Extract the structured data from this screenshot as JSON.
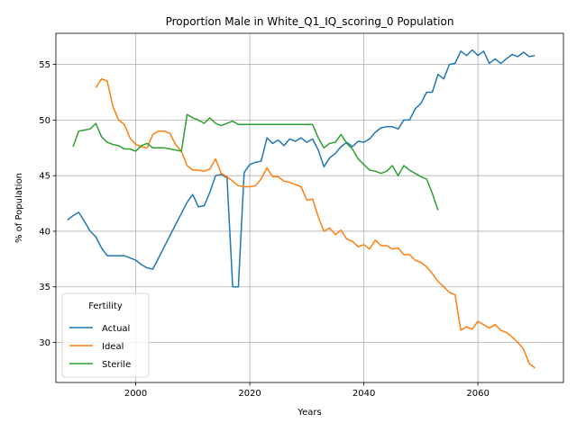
{
  "chart_data": {
    "type": "line",
    "title": "Proportion Male in White_Q1_IQ_scoring_0 Population",
    "xlabel": "Years",
    "ylabel": "% of Population",
    "xlim": [
      1986,
      2075
    ],
    "ylim": [
      26.4,
      57.8
    ],
    "xticks": [
      2000,
      2020,
      2040,
      2060
    ],
    "yticks": [
      30,
      35,
      40,
      45,
      50,
      55
    ],
    "grid": true,
    "legend": {
      "title": "Fertility",
      "placement": "lower-left"
    },
    "colors": {
      "Actual": "#1f77b4",
      "Ideal": "#ff7f0e",
      "Sterile": "#2ca02c"
    },
    "series": [
      {
        "name": "Actual",
        "x": [
          1988,
          1989,
          1990,
          1991,
          1992,
          1993,
          1994,
          1995,
          1996,
          1997,
          1998,
          1999,
          2000,
          2001,
          2002,
          2003,
          2004,
          2005,
          2006,
          2007,
          2008,
          2009,
          2010,
          2011,
          2012,
          2013,
          2014,
          2015,
          2016,
          2017,
          2018,
          2019,
          2020,
          2021,
          2022,
          2023,
          2024,
          2025,
          2026,
          2027,
          2028,
          2029,
          2030,
          2031,
          2032,
          2033,
          2034,
          2035,
          2036,
          2037,
          2038,
          2039,
          2040,
          2041,
          2042,
          2043,
          2044,
          2045,
          2046,
          2047,
          2048,
          2049,
          2050,
          2051,
          2052,
          2053,
          2054,
          2055,
          2056,
          2057,
          2058,
          2059,
          2060,
          2061,
          2062,
          2063,
          2064,
          2065,
          2066,
          2067,
          2068,
          2069,
          2070
        ],
        "values": [
          41.0,
          41.4,
          41.7,
          40.9,
          40.0,
          39.5,
          38.5,
          37.8,
          37.8,
          37.8,
          37.8,
          37.6,
          37.4,
          37.0,
          36.7,
          36.6,
          37.6,
          38.6,
          39.6,
          40.6,
          41.6,
          42.6,
          43.3,
          42.2,
          42.3,
          43.5,
          45.0,
          45.1,
          44.8,
          35.0,
          35.0,
          45.3,
          46.0,
          46.2,
          46.3,
          48.4,
          47.9,
          48.2,
          47.7,
          48.3,
          48.1,
          48.4,
          48.0,
          48.3,
          47.3,
          45.8,
          46.6,
          47.0,
          47.6,
          48.0,
          47.6,
          48.1,
          48.0,
          48.3,
          48.9,
          49.3,
          49.4,
          49.4,
          49.2,
          50.0,
          50.0,
          51.0,
          51.5,
          52.5,
          52.5,
          54.1,
          53.7,
          55.0,
          55.1,
          56.2,
          55.8,
          56.3,
          55.8,
          56.2,
          55.1,
          55.5,
          55.1,
          55.5,
          55.9,
          55.7,
          56.1,
          55.7,
          55.8
        ]
      },
      {
        "name": "Ideal",
        "x": [
          1993,
          1994,
          1995,
          1996,
          1997,
          1998,
          1999,
          2000,
          2001,
          2002,
          2003,
          2004,
          2005,
          2006,
          2007,
          2008,
          2009,
          2010,
          2011,
          2012,
          2013,
          2014,
          2015,
          2016,
          2017,
          2018,
          2019,
          2020,
          2021,
          2022,
          2023,
          2024,
          2025,
          2026,
          2027,
          2028,
          2029,
          2030,
          2031,
          2032,
          2033,
          2034,
          2035,
          2036,
          2037,
          2038,
          2039,
          2040,
          2041,
          2042,
          2043,
          2044,
          2045,
          2046,
          2047,
          2048,
          2049,
          2050,
          2051,
          2052,
          2053,
          2054,
          2055,
          2056,
          2057,
          2058,
          2059,
          2060,
          2061,
          2062,
          2063,
          2064,
          2065,
          2066,
          2067,
          2068,
          2069,
          2070
        ],
        "values": [
          52.9,
          53.7,
          53.5,
          51.2,
          50.0,
          49.6,
          48.4,
          47.8,
          47.6,
          47.5,
          48.7,
          49.0,
          49.0,
          48.8,
          47.8,
          47.2,
          45.9,
          45.5,
          45.5,
          45.4,
          45.6,
          46.5,
          45.2,
          44.9,
          44.5,
          44.1,
          44.0,
          44.0,
          44.1,
          44.7,
          45.7,
          44.9,
          44.9,
          44.5,
          44.4,
          44.2,
          44.0,
          42.8,
          42.9,
          41.3,
          40.0,
          40.3,
          39.7,
          40.1,
          39.3,
          39.1,
          38.6,
          38.8,
          38.4,
          39.2,
          38.7,
          38.7,
          38.4,
          38.5,
          37.9,
          37.9,
          37.4,
          37.2,
          36.8,
          36.2,
          35.5,
          35.0,
          34.5,
          34.3,
          31.1,
          31.4,
          31.2,
          31.9,
          31.6,
          31.3,
          31.6,
          31.1,
          30.9,
          30.5,
          30.0,
          29.4,
          28.1,
          27.7
        ]
      },
      {
        "name": "Sterile",
        "x": [
          1989,
          1990,
          1991,
          1992,
          1993,
          1994,
          1995,
          1996,
          1997,
          1998,
          1999,
          2000,
          2001,
          2002,
          2003,
          2004,
          2005,
          2006,
          2007,
          2008,
          2009,
          2010,
          2011,
          2012,
          2013,
          2014,
          2015,
          2016,
          2017,
          2018,
          2019,
          2020,
          2021,
          2022,
          2023,
          2024,
          2025,
          2026,
          2027,
          2028,
          2029,
          2030,
          2031,
          2032,
          2033,
          2034,
          2035,
          2036,
          2037,
          2038,
          2039,
          2040,
          2041,
          2042,
          2043,
          2044,
          2045,
          2046,
          2047,
          2048,
          2049,
          2050,
          2051,
          2052,
          2053
        ],
        "values": [
          47.6,
          49.0,
          49.1,
          49.2,
          49.7,
          48.5,
          48.0,
          47.8,
          47.7,
          47.4,
          47.4,
          47.2,
          47.7,
          47.9,
          47.5,
          47.5,
          47.5,
          47.4,
          47.3,
          47.2,
          50.5,
          50.2,
          50.0,
          49.7,
          50.2,
          49.7,
          49.5,
          49.7,
          49.9,
          49.6,
          49.6,
          49.6,
          49.6,
          49.6,
          49.6,
          49.6,
          49.6,
          49.6,
          49.6,
          49.6,
          49.6,
          49.6,
          49.6,
          48.4,
          47.5,
          47.9,
          48.0,
          48.7,
          47.9,
          47.4,
          46.5,
          46.0,
          45.5,
          45.4,
          45.2,
          45.4,
          45.9,
          45.0,
          45.9,
          45.5,
          45.2,
          44.9,
          44.7,
          43.4,
          41.9
        ]
      }
    ]
  }
}
